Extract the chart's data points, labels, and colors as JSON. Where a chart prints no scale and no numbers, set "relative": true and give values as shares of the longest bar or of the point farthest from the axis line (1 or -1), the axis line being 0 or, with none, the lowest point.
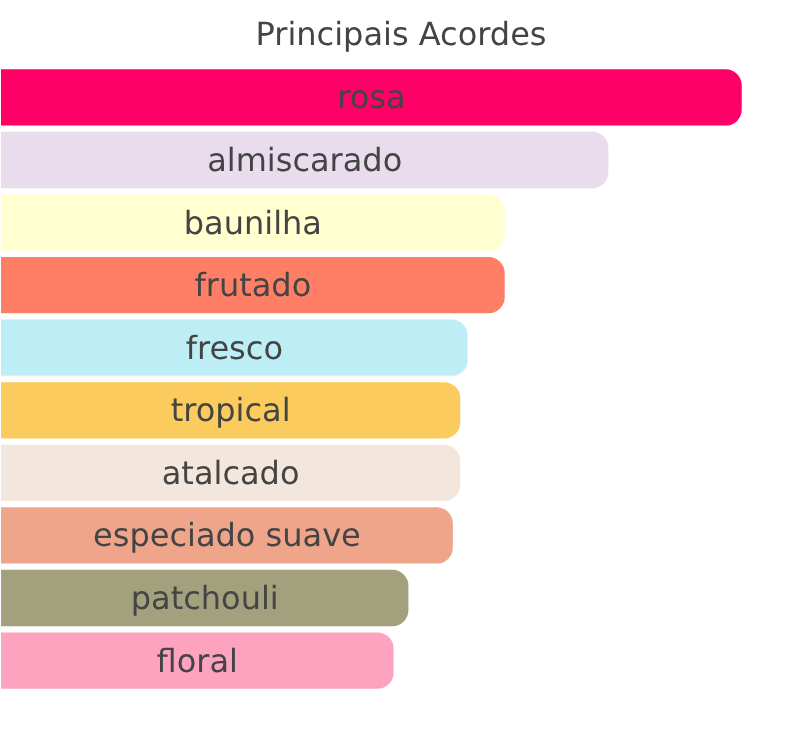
{
  "chart_data": {
    "type": "bar",
    "title": "Principais Acordes",
    "orientation": "horizontal",
    "relative": true,
    "data_labels": false,
    "categories": [
      "rosa",
      "almiscarado",
      "baunilha",
      "frutado",
      "fresco",
      "tropical",
      "atalcado",
      "especiado suave",
      "patchouli",
      "floral"
    ],
    "values": [
      1,
      0.82,
      0.68,
      0.68,
      0.63,
      0.62,
      0.62,
      0.61,
      0.55,
      0.53
    ],
    "colors": [
      "#ff0066",
      "#e8dced",
      "#ffffd0",
      "#ff7e66",
      "#bdeef5",
      "#fbcb5e",
      "#f3e6dc",
      "#eea58a",
      "#a3a17d",
      "#fea3bf"
    ],
    "grid": false
  }
}
